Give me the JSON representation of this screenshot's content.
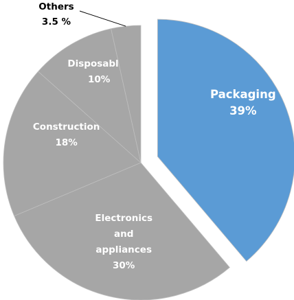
{
  "chart_data": {
    "type": "pie",
    "title": "",
    "slices": [
      {
        "name": "Packaging",
        "label_lines": [
          "Packaging"
        ],
        "value_label": "39%",
        "value": 39,
        "color": "#5b9bd5",
        "exploded": true,
        "label_style": "inside-white"
      },
      {
        "name": "Electronics and appliances",
        "label_lines": [
          "Electronics",
          "and",
          "appliances"
        ],
        "value_label": "30%",
        "value": 30,
        "color": "#a6a6a6",
        "exploded": false,
        "label_style": "inside-white"
      },
      {
        "name": "Construction",
        "label_lines": [
          "Construction"
        ],
        "value_label": "18%",
        "value": 18,
        "color": "#a6a6a6",
        "exploded": false,
        "label_style": "inside-white"
      },
      {
        "name": "Disposables",
        "label_lines": [
          "Disposables"
        ],
        "value_label": "10%",
        "value": 10,
        "color": "#a6a6a6",
        "exploded": false,
        "label_style": "inside-white"
      },
      {
        "name": "Others",
        "label_lines": [
          "Others"
        ],
        "value_label": "3.5 %",
        "value": 3.5,
        "color": "#a6a6a6",
        "exploded": false,
        "label_style": "outside-leader"
      }
    ],
    "legend": "none",
    "slice_border_color": "#bfbfbf"
  }
}
